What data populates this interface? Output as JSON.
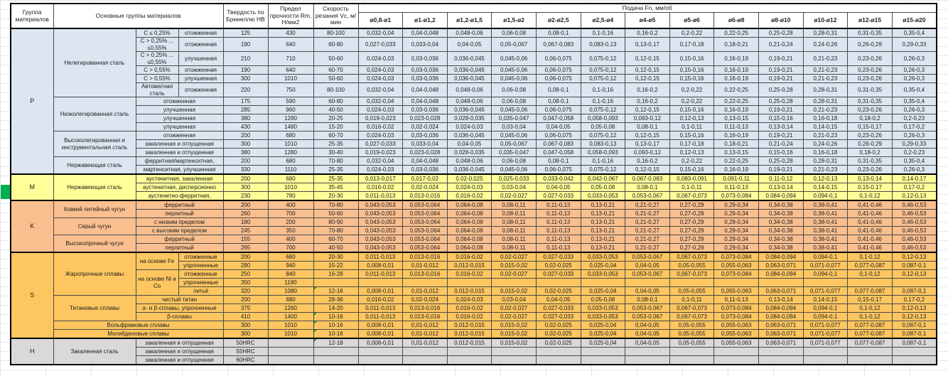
{
  "colors": {
    "group_P": "#dce6f1",
    "group_M": "#ffff99",
    "group_K": "#fabf8f",
    "group_S": "#fdc660",
    "group_H": "#d9d9d9",
    "highlight_green": "#00b050",
    "flag_green": "#2e9b2e"
  },
  "table": {
    "header": {
      "group": "Группа материалов",
      "main_groups": "Основные группы материалов",
      "hardness": "Твердость по Бринеллю НВ",
      "strength": "Предел прочности Rm, Н/мм2",
      "speed": "Скорость резания Vc, м/мин",
      "feed": "Подача Fn, мм/об",
      "feed_columns": [
        "ø0,8-ø1",
        "ø1-ø1,2",
        "ø1,2-ø1,5",
        "ø1,5-ø2",
        "ø2-ø2,5",
        "ø2,5-ø4",
        "ø4-ø5",
        "ø5-ø6",
        "ø6-ø8",
        "ø8-ø10",
        "ø10-ø12",
        "ø12-ø15",
        "ø15-ø20"
      ]
    },
    "feed_patterns": {
      "p1": [
        "0,032-0,04",
        "0,04-0,048",
        "0,048-0,06",
        "0,06-0,08",
        "0,08-0,1",
        "0,1-0,16",
        "0,16-0,2",
        "0,2-0,22",
        "0,22-0,25",
        "0,25-0,28",
        "0,28-0,31",
        "0,31-0,35",
        "0,35-0,4"
      ],
      "p2": [
        "0,027-0,033",
        "0,033-0,04",
        "0,04-0,05",
        "0,05-0,067",
        "0,067-0,083",
        "0,083-0,13",
        "0,13-0,17",
        "0,17-0,18",
        "0,18-0,21",
        "0,21-0,24",
        "0,24-0,26",
        "0,26-0,29",
        "0,29-0,33"
      ],
      "p3": [
        "0,024-0,03",
        "0,03-0,036",
        "0,036-0,045",
        "0,045-0,06",
        "0,06-0,075",
        "0,075-0,12",
        "0,12-0,15",
        "0,15-0,16",
        "0,16-0,19",
        "0,19-0,21",
        "0,21-0,23",
        "0,23-0,26",
        "0,26-0,3"
      ],
      "p4": [
        "0,019-0,023",
        "0,023-0,028",
        "0,028-0,035",
        "0,035-0,047",
        "0,047-0,058",
        "0,058-0,093",
        "0,093-0,12",
        "0,12-0,13",
        "0,13-0,15",
        "0,15-0,16",
        "0,16-0,18",
        "0,18-0,2",
        "0,2-0,23"
      ],
      "p5": [
        "0,016-0,02",
        "0,02-0,024",
        "0,024-0,03",
        "0,03-0,04",
        "0,04-0,05",
        "0,05-0,08",
        "0,08-0,1",
        "0,1-0,11",
        "0,11-0,13",
        "0,13-0,14",
        "0,14-0,15",
        "0,15-0,17",
        "0,17-0,2"
      ],
      "p6": [
        "0,013-0,017",
        "0,017-0,02",
        "0,02-0,025",
        "0,025-0,033",
        "0,033-0,042",
        "0,042-0,067",
        "0,067-0,083",
        "0,083-0,091",
        "0,091-0,11",
        "0,11-0,12",
        "0,12-0,13",
        "0,13-0,14",
        "0,14-0,17"
      ],
      "p7": [
        "0,011-0,013",
        "0,013-0,016",
        "0,016-0,02",
        "0,02-0,027",
        "0,027-0,033",
        "0,033-0,053",
        "0,053-0,067",
        "0,067-0,073",
        "0,073-0,084",
        "0,084-0,094",
        "0,094-0,1",
        "0,1-0,12",
        "0,12-0,13"
      ],
      "p8": [
        "0,043-0,053",
        "0,053-0,064",
        "0,064-0,08",
        "0,08-0,11",
        "0,11-0,13",
        "0,13-0,21",
        "0,21-0,27",
        "0,27-0,29",
        "0,29-0,34",
        "0,34-0,38",
        "0,38-0,41",
        "0,41-0,46",
        "0,46-0,53"
      ],
      "p9": [
        "0,008-0,01",
        "0,01-0,012",
        "0,012-0,015",
        "0,015-0,02",
        "0,02-0,025",
        "0,025-0,04",
        "0,04-0,05",
        "0,05-0,055",
        "0,055-0,063",
        "0,063-0,071",
        "0,071-0,077",
        "0,077-0,087",
        "0,087-0,1"
      ]
    },
    "groups": [
      {
        "code": "P",
        "rows": [
          {
            "left": [
              {
                "t": "Нелегированная сталь",
                "rs": 6
              },
              {
                "t": "C ≤ 0,25%"
              },
              {
                "t": "отожженная"
              }
            ],
            "hb": "125",
            "rm": "430",
            "vc": "80-100",
            "f": "p1"
          },
          {
            "tall": true,
            "left": [
              {
                "t": "C > 0,25% ... ≤0,55%"
              },
              {
                "t": "отожженная"
              }
            ],
            "hb": "190",
            "rm": "640",
            "vc": "60-80",
            "f": "p2"
          },
          {
            "tall": true,
            "left": [
              {
                "t": "C > 0,25% ... ≤0,55%"
              },
              {
                "t": "улучшенная"
              }
            ],
            "hb": "210",
            "rm": "710",
            "vc": "50-60",
            "f": "p3"
          },
          {
            "left": [
              {
                "t": "C > 0,55%"
              },
              {
                "t": "отожженная"
              }
            ],
            "hb": "190",
            "rm": "640",
            "vc": "60-70",
            "f": "p3"
          },
          {
            "left": [
              {
                "t": "C > 0,55%"
              },
              {
                "t": "улучшенная"
              }
            ],
            "hb": "300",
            "rm": "1010",
            "vc": "50-60",
            "f": "p3"
          },
          {
            "tall": true,
            "left": [
              {
                "t": "Автоматная сталь"
              },
              {
                "t": "отожженная"
              }
            ],
            "hb": "220",
            "rm": "750",
            "vc": "80-100",
            "f": "p1"
          },
          {
            "left": [
              {
                "t": "Низколегированная сталь",
                "rs": 4
              },
              {
                "t": "отожженная",
                "cs": 2
              }
            ],
            "hb": "175",
            "rm": "590",
            "vc": "60-80",
            "f": "p1"
          },
          {
            "left": [
              {
                "t": "улучшенная",
                "cs": 2
              }
            ],
            "hb": "285",
            "rm": "960",
            "vc": "40-50",
            "f": "p3"
          },
          {
            "left": [
              {
                "t": "улучшенная",
                "cs": 2
              }
            ],
            "hb": "380",
            "rm": "1280",
            "vc": "20-25",
            "f": "p4"
          },
          {
            "left": [
              {
                "t": "улучшенная",
                "cs": 2
              }
            ],
            "hb": "430",
            "rm": "1480",
            "vc": "15-20",
            "f": "p5"
          },
          {
            "left": [
              {
                "t": "Высоколегированная и инструментальная сталь",
                "rs": 3
              },
              {
                "t": "отожженная",
                "cs": 2
              }
            ],
            "hb": "200",
            "rm": "680",
            "vc": "60-70",
            "f": "p3"
          },
          {
            "left": [
              {
                "t": "закаленная и отпущенная",
                "cs": 2
              }
            ],
            "hb": "300",
            "rm": "1010",
            "vc": "25-35",
            "f": "p2"
          },
          {
            "left": [
              {
                "t": "закаленная и отпущенная",
                "cs": 2
              }
            ],
            "hb": "380",
            "rm": "1280",
            "vc": "30-40",
            "f": "p4"
          },
          {
            "left": [
              {
                "t": "Нержавеющая сталь",
                "rs": 2
              },
              {
                "t": "ферритная/мартенситная,",
                "cs": 2
              }
            ],
            "hb": "200",
            "rm": "680",
            "vc": "70-80",
            "f": "p1"
          },
          {
            "left": [
              {
                "t": "мартенситная, улучшенная",
                "cs": 2
              }
            ],
            "hb": "330",
            "rm": "1110",
            "vc": "25-35",
            "f": "p3"
          }
        ]
      },
      {
        "code": "M",
        "rows": [
          {
            "left": [
              {
                "t": "Нержавеющая сталь",
                "rs": 3
              },
              {
                "t": "аустенитная, закаленная",
                "cs": 2
              }
            ],
            "hb": "200",
            "rm": "680",
            "vc": "25-35",
            "f": "p6"
          },
          {
            "left": [
              {
                "t": "аустенитная, дисперсионно",
                "cs": 2
              }
            ],
            "hb": "300",
            "rm": "1010",
            "vc": "35-45",
            "f": "p5"
          },
          {
            "left": [
              {
                "t": "аустенитно-ферритная,",
                "cs": 2
              }
            ],
            "hb": "230",
            "rm": "780",
            "vc": "20-30",
            "f": "p7"
          }
        ]
      },
      {
        "code": "K",
        "rows": [
          {
            "left": [
              {
                "t": "Ковкий литейный чугун",
                "rs": 2
              },
              {
                "t": "ферритный",
                "cs": 2
              }
            ],
            "hb": "200",
            "rm": "400",
            "vc": "70-80",
            "f": "p8"
          },
          {
            "left": [
              {
                "t": "перлитный",
                "cs": 2
              }
            ],
            "hb": "260",
            "rm": "700",
            "vc": "50-60",
            "f": "p8"
          },
          {
            "left": [
              {
                "t": "Серый чугун",
                "rs": 2
              },
              {
                "t": "с низким пределом",
                "cs": 2
              }
            ],
            "hb": "180",
            "rm": "200",
            "vc": "80-90",
            "f": "p8"
          },
          {
            "left": [
              {
                "t": "с высоким пределом",
                "cs": 2
              }
            ],
            "hb": "245",
            "rm": "350",
            "vc": "70-80",
            "f": "p8"
          },
          {
            "left": [
              {
                "t": "Высокопрочный чугун",
                "rs": 2
              },
              {
                "t": "ферритный",
                "cs": 2
              }
            ],
            "hb": "155",
            "rm": "400",
            "vc": "60-70",
            "f": "p8"
          },
          {
            "left": [
              {
                "t": "перлитный",
                "cs": 2
              }
            ],
            "hb": "265",
            "rm": "700",
            "vc": "40-50",
            "f": "p8"
          }
        ]
      },
      {
        "code": "S",
        "rows": [
          {
            "left": [
              {
                "t": "Жаропрочные сплавы",
                "rs": 5
              },
              {
                "t": "на основе Fe",
                "rs": 2
              },
              {
                "t": "отожженные"
              }
            ],
            "hb": "200",
            "rm": "680",
            "vc": "20-30",
            "f": "p7"
          },
          {
            "left": [
              {
                "t": "упрочненные"
              }
            ],
            "hb": "280",
            "rm": "940",
            "vc": "15-22",
            "f": "p9"
          },
          {
            "left": [
              {
                "t": "на основе Ni и Co",
                "rs": 3
              },
              {
                "t": "отожженные"
              }
            ],
            "hb": "250",
            "rm": "840",
            "vc": "16-28",
            "f": "p7"
          },
          {
            "left": [
              {
                "t": "упрочненные"
              }
            ],
            "hb": "350",
            "rm": "1180",
            "vc": "",
            "f": null
          },
          {
            "left": [
              {
                "t": "литьё"
              }
            ],
            "hb": "320",
            "rm": "1080",
            "vc": "12-16",
            "flag": true,
            "f": "p9"
          },
          {
            "left": [
              {
                "t": "Титановые сплавы",
                "rs": 3
              },
              {
                "t": "чистый титан",
                "cs": 2
              }
            ],
            "hb": "200",
            "rm": "680",
            "vc": "28-36",
            "f": "p5"
          },
          {
            "left": [
              {
                "t": "α- и β-сплавы, упрочненные",
                "cs": 2
              }
            ],
            "hb": "375",
            "rm": "1260",
            "vc": "14-20",
            "f": "p7"
          },
          {
            "left": [
              {
                "t": "β-сплавы",
                "cs": 2
              }
            ],
            "hb": "410",
            "rm": "1400",
            "vc": "10-16",
            "flag": true,
            "f": "p7"
          },
          {
            "left": [
              {
                "t": "Вольфрамовые сплавы",
                "cs": 3
              }
            ],
            "hb": "300",
            "rm": "1010",
            "vc": "10-16",
            "flag": true,
            "f": "p9"
          },
          {
            "left": [
              {
                "t": "Молибденовые сплавы",
                "cs": 3
              }
            ],
            "hb": "300",
            "rm": "1010",
            "vc": "10-16",
            "flag": true,
            "f": "p9"
          }
        ]
      },
      {
        "code": "H",
        "rows": [
          {
            "left": [
              {
                "t": "Закаленная сталь",
                "rs": 3
              },
              {
                "t": "закаленная и отпущенная",
                "cs": 2
              }
            ],
            "hb": "50HRC",
            "rm": "",
            "vc": "12-18",
            "flag": true,
            "f": "p9"
          },
          {
            "left": [
              {
                "t": "закаленная и отпущенная",
                "cs": 2
              }
            ],
            "hb": "55HRC",
            "rm": "",
            "vc": "",
            "f": null
          },
          {
            "left": [
              {
                "t": "закаленная и отпущенная",
                "cs": 2
              }
            ],
            "hb": "60HRC",
            "rm": "",
            "vc": "",
            "f": null
          }
        ]
      }
    ]
  }
}
